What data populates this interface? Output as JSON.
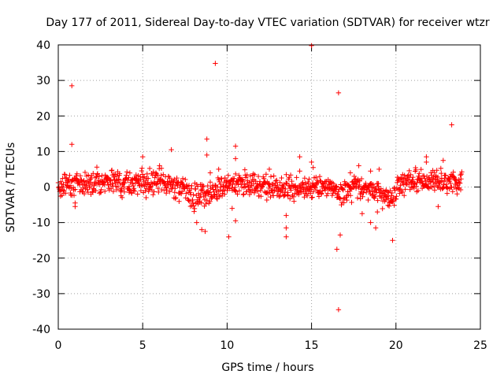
{
  "chart_data": {
    "type": "scatter",
    "title": "Day 177 of 2011, Sidereal Day-to-day VTEC variation (SDTVAR) for receiver wtzr",
    "xlabel": "GPS time / hours",
    "ylabel": "SDTVAR / TECUs",
    "xlim": [
      0,
      25
    ],
    "ylim": [
      -40,
      40
    ],
    "xticks": [
      0,
      5,
      10,
      15,
      20,
      25
    ],
    "yticks": [
      -40,
      -30,
      -20,
      -10,
      0,
      10,
      20,
      30,
      40
    ],
    "grid": true,
    "marker": "+",
    "series": [
      {
        "name": "SDTVAR wtzr",
        "color": "#ff0000",
        "trend": [
          {
            "x": 0.0,
            "y": 0.0
          },
          {
            "x": 0.5,
            "y": 0.8
          },
          {
            "x": 1.0,
            "y": 1.2
          },
          {
            "x": 1.5,
            "y": 1.0
          },
          {
            "x": 2.0,
            "y": 1.3
          },
          {
            "x": 2.4,
            "y": 2.0
          },
          {
            "x": 3.0,
            "y": 1.5
          },
          {
            "x": 4.0,
            "y": 1.2
          },
          {
            "x": 5.0,
            "y": 1.5
          },
          {
            "x": 6.0,
            "y": 1.0
          },
          {
            "x": 7.0,
            "y": 0.5
          },
          {
            "x": 7.6,
            "y": -1.0
          },
          {
            "x": 8.0,
            "y": -3.0
          },
          {
            "x": 8.5,
            "y": -2.0
          },
          {
            "x": 9.0,
            "y": -1.0
          },
          {
            "x": 10.0,
            "y": 0.5
          },
          {
            "x": 11.0,
            "y": 1.0
          },
          {
            "x": 12.0,
            "y": 0.5
          },
          {
            "x": 13.0,
            "y": -0.5
          },
          {
            "x": 14.0,
            "y": -1.0
          },
          {
            "x": 15.0,
            "y": 0.0
          },
          {
            "x": 16.0,
            "y": 0.5
          },
          {
            "x": 16.7,
            "y": -2.0
          },
          {
            "x": 17.5,
            "y": 0.5
          },
          {
            "x": 18.5,
            "y": -0.5
          },
          {
            "x": 19.0,
            "y": -2.0
          },
          {
            "x": 19.8,
            "y": -3.0
          },
          {
            "x": 20.2,
            "y": 1.0
          },
          {
            "x": 21.0,
            "y": 1.5
          },
          {
            "x": 22.0,
            "y": 2.0
          },
          {
            "x": 22.8,
            "y": 1.0
          },
          {
            "x": 23.5,
            "y": 1.5
          },
          {
            "x": 23.9,
            "y": 1.5
          }
        ],
        "spread": 2.0,
        "outliers": [
          {
            "x": 0.8,
            "y": 28.5
          },
          {
            "x": 0.8,
            "y": 12.0
          },
          {
            "x": 1.0,
            "y": -4.5
          },
          {
            "x": 1.0,
            "y": -5.5
          },
          {
            "x": 4.2,
            "y": -1.5
          },
          {
            "x": 5.0,
            "y": 8.5
          },
          {
            "x": 5.2,
            "y": -3.0
          },
          {
            "x": 6.0,
            "y": 6.0
          },
          {
            "x": 6.7,
            "y": 10.5
          },
          {
            "x": 8.2,
            "y": -10.0
          },
          {
            "x": 8.5,
            "y": -12.0
          },
          {
            "x": 8.7,
            "y": -12.5
          },
          {
            "x": 8.8,
            "y": 9.0
          },
          {
            "x": 8.8,
            "y": 13.5
          },
          {
            "x": 9.0,
            "y": 4.0
          },
          {
            "x": 9.3,
            "y": 34.8
          },
          {
            "x": 9.5,
            "y": 5.0
          },
          {
            "x": 10.1,
            "y": -14.0
          },
          {
            "x": 10.3,
            "y": -6.0
          },
          {
            "x": 10.5,
            "y": -9.5
          },
          {
            "x": 10.5,
            "y": 11.5
          },
          {
            "x": 10.5,
            "y": 8.0
          },
          {
            "x": 12.5,
            "y": 5.0
          },
          {
            "x": 13.5,
            "y": -11.5
          },
          {
            "x": 13.5,
            "y": -14.0
          },
          {
            "x": 13.5,
            "y": -8.0
          },
          {
            "x": 14.3,
            "y": 8.5
          },
          {
            "x": 14.3,
            "y": 4.5
          },
          {
            "x": 15.0,
            "y": 39.8
          },
          {
            "x": 15.0,
            "y": 7.0
          },
          {
            "x": 15.1,
            "y": 5.5
          },
          {
            "x": 16.6,
            "y": 26.5
          },
          {
            "x": 16.5,
            "y": -17.5
          },
          {
            "x": 16.7,
            "y": -13.5
          },
          {
            "x": 16.6,
            "y": -34.5
          },
          {
            "x": 17.3,
            "y": 4.0
          },
          {
            "x": 17.8,
            "y": 6.0
          },
          {
            "x": 18.0,
            "y": -7.5
          },
          {
            "x": 18.5,
            "y": 4.5
          },
          {
            "x": 18.5,
            "y": -10.0
          },
          {
            "x": 18.8,
            "y": -11.5
          },
          {
            "x": 18.9,
            "y": -7.0
          },
          {
            "x": 19.0,
            "y": 5.0
          },
          {
            "x": 19.8,
            "y": -15.0
          },
          {
            "x": 21.8,
            "y": 8.5
          },
          {
            "x": 21.8,
            "y": 7.0
          },
          {
            "x": 22.5,
            "y": -5.5
          },
          {
            "x": 22.8,
            "y": 7.5
          },
          {
            "x": 23.3,
            "y": 17.5
          }
        ]
      }
    ]
  }
}
